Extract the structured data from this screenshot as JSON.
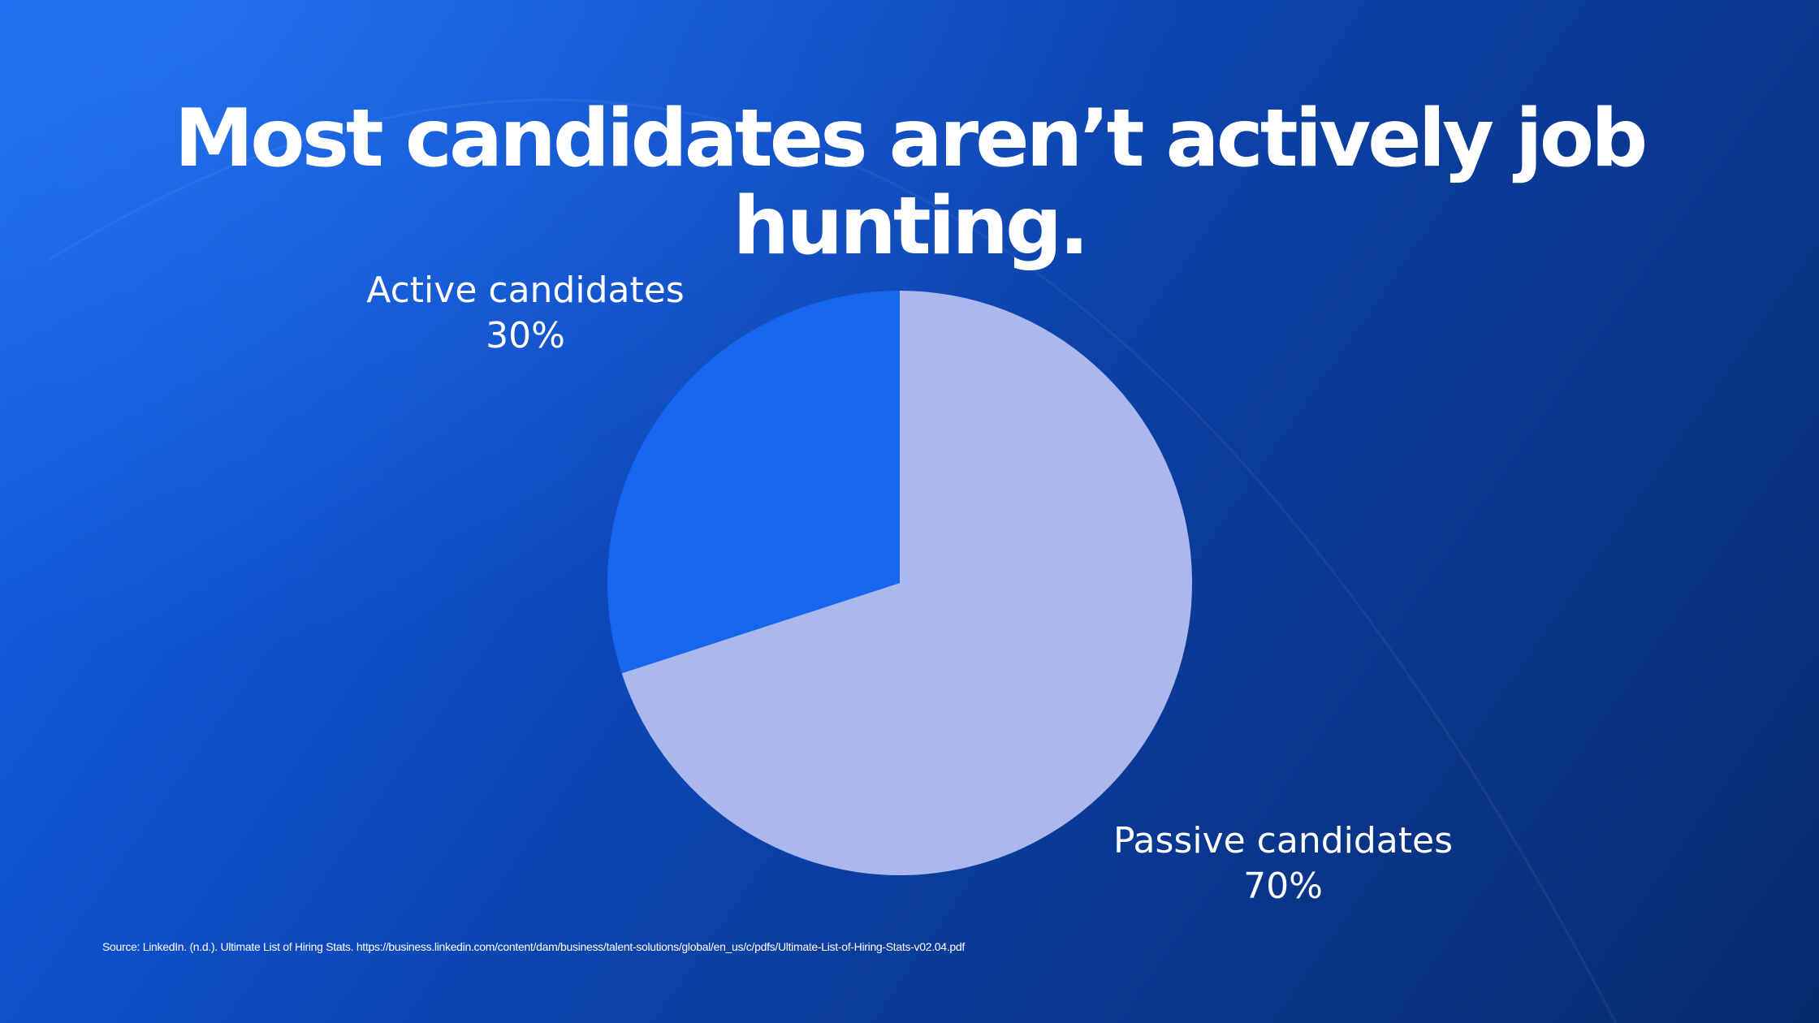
{
  "slide": {
    "title": "Most candidates aren’t actively job hunting.",
    "source": "Source: LinkedIn. (n.d.). Ultimate List of Hiring Stats. https://business.linkedin.com/content/dam/business/talent-solutions/global/en_us/c/pdfs/Ultimate-List-of-Hiring-Stats-v02.04.pdf"
  },
  "colors": {
    "active": "#1766ef",
    "passive": "#aab8ee",
    "background_start": "#1766ec",
    "background_end": "#072a6e"
  },
  "chart_data": {
    "type": "pie",
    "title": "",
    "slices": [
      {
        "label": "Passive candidates",
        "value": 70,
        "value_label": "70%",
        "color": "#aab8ee"
      },
      {
        "label": "Active candidates",
        "value": 30,
        "value_label": "30%",
        "color": "#1766ef"
      }
    ],
    "start_angle": "12 o'clock",
    "direction": "clockwise",
    "legend": "none",
    "labels": "outside"
  }
}
